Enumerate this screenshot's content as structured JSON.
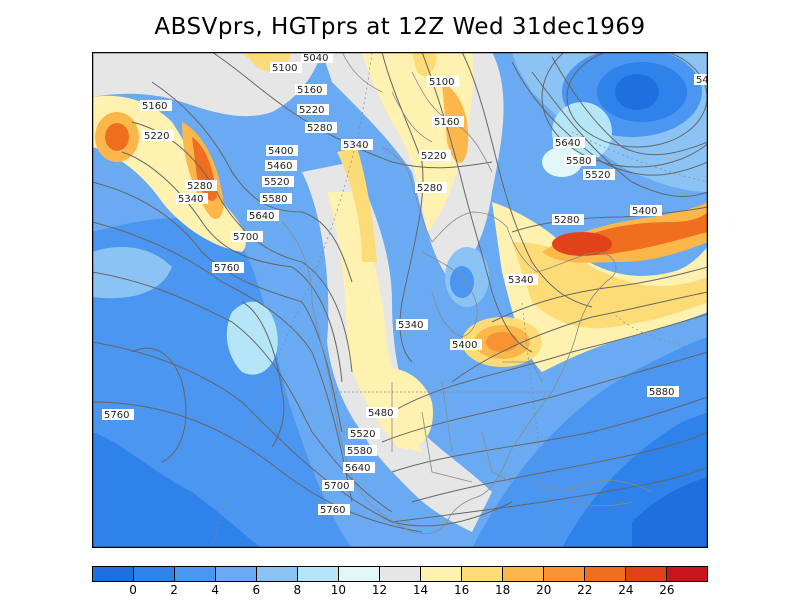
{
  "title": "ABSVprs, HGTprs at 12Z Wed 31dec1969",
  "legend": {
    "colors": [
      "#1f6fe0",
      "#2f82ea",
      "#4a96f0",
      "#6aaaf2",
      "#8cc3f5",
      "#b5e6f7",
      "#e2f6f7",
      "#e6e6e6",
      "#fff1b0",
      "#fddc78",
      "#fcb74b",
      "#f99232",
      "#f06e1f",
      "#e0421a",
      "#c8141a"
    ],
    "labels": [
      "0",
      "2",
      "4",
      "6",
      "8",
      "10",
      "12",
      "14",
      "16",
      "18",
      "20",
      "22",
      "24",
      "26"
    ]
  },
  "contours": {
    "upper": [
      {
        "text": "5040"
      },
      {
        "text": "5100"
      },
      {
        "text": "5100"
      },
      {
        "text": "5160"
      },
      {
        "text": "5160"
      },
      {
        "text": "5160"
      },
      {
        "text": "5220"
      },
      {
        "text": "5220"
      },
      {
        "text": "5220"
      },
      {
        "text": "5280"
      },
      {
        "text": "5280"
      },
      {
        "text": "5280"
      },
      {
        "text": "5280"
      },
      {
        "text": "5340"
      },
      {
        "text": "5340"
      },
      {
        "text": "5340"
      },
      {
        "text": "5340"
      },
      {
        "text": "5400"
      },
      {
        "text": "5400"
      },
      {
        "text": "5400"
      },
      {
        "text": "5460"
      },
      {
        "text": "5480"
      },
      {
        "text": "5520"
      },
      {
        "text": "5520"
      },
      {
        "text": "5520"
      },
      {
        "text": "5580"
      },
      {
        "text": "5580"
      },
      {
        "text": "5580"
      },
      {
        "text": "5640"
      },
      {
        "text": "5640"
      },
      {
        "text": "5640"
      },
      {
        "text": "5700"
      },
      {
        "text": "5700"
      },
      {
        "text": "5760"
      },
      {
        "text": "5760"
      },
      {
        "text": "5760"
      },
      {
        "text": "5880"
      },
      {
        "text": "54"
      }
    ]
  }
}
